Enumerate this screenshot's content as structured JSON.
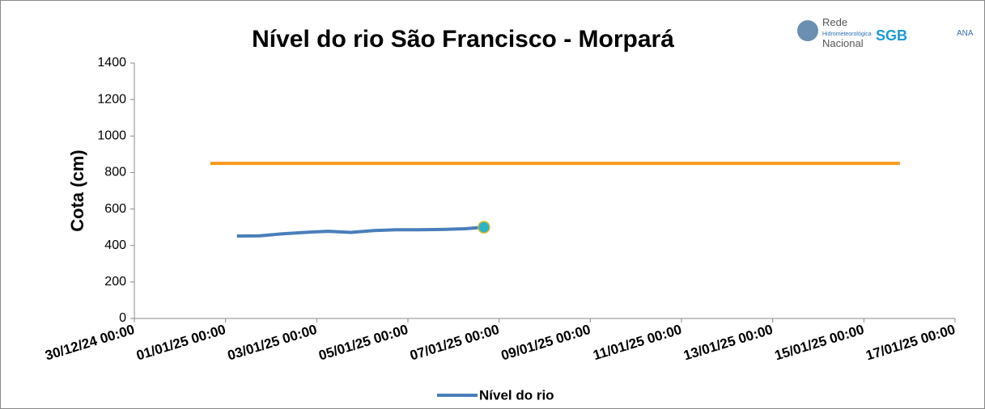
{
  "chart_data": {
    "type": "line",
    "title": "Nível do rio São Francisco - Morpará",
    "ylabel": "Cota (cm)",
    "logos": [
      "Rede",
      "Hidrometeorológica",
      "Nacional",
      "SGB",
      "ANA"
    ],
    "xlim": [
      "30/12/24 00:00",
      "17/01/25 00:00"
    ],
    "xticks": [
      "30/12/24 00:00",
      "01/01/25 00:00",
      "03/01/25 00:00",
      "05/01/25 00:00",
      "07/01/25 00:00",
      "09/01/25 00:00",
      "11/01/25 00:00",
      "13/01/25 00:00",
      "15/01/25 00:00",
      "17/01/25 00:00"
    ],
    "ylim": [
      0,
      1400
    ],
    "yticks": [
      0,
      200,
      400,
      600,
      800,
      1000,
      1200,
      1400
    ],
    "legend": "bottom",
    "series": [
      {
        "name": "Nível do rio",
        "color": "#4a7ebb",
        "marker_last": "#2bb3c8",
        "x": [
          "01/01/25 06:00",
          "01/01/25 18:00",
          "02/01/25 06:00",
          "02/01/25 18:00",
          "03/01/25 06:00",
          "03/01/25 18:00",
          "04/01/25 06:00",
          "04/01/25 18:00",
          "05/01/25 06:00",
          "05/01/25 18:00",
          "06/01/25 06:00",
          "06/01/25 16:00"
        ],
        "values": [
          452,
          453,
          464,
          472,
          478,
          472,
          482,
          486,
          486,
          488,
          492,
          500
        ]
      },
      {
        "color": "#f79a1e",
        "x": [
          "31/12/24 16:00",
          "15/01/25 19:00"
        ],
        "values": [
          850,
          850
        ]
      }
    ]
  }
}
